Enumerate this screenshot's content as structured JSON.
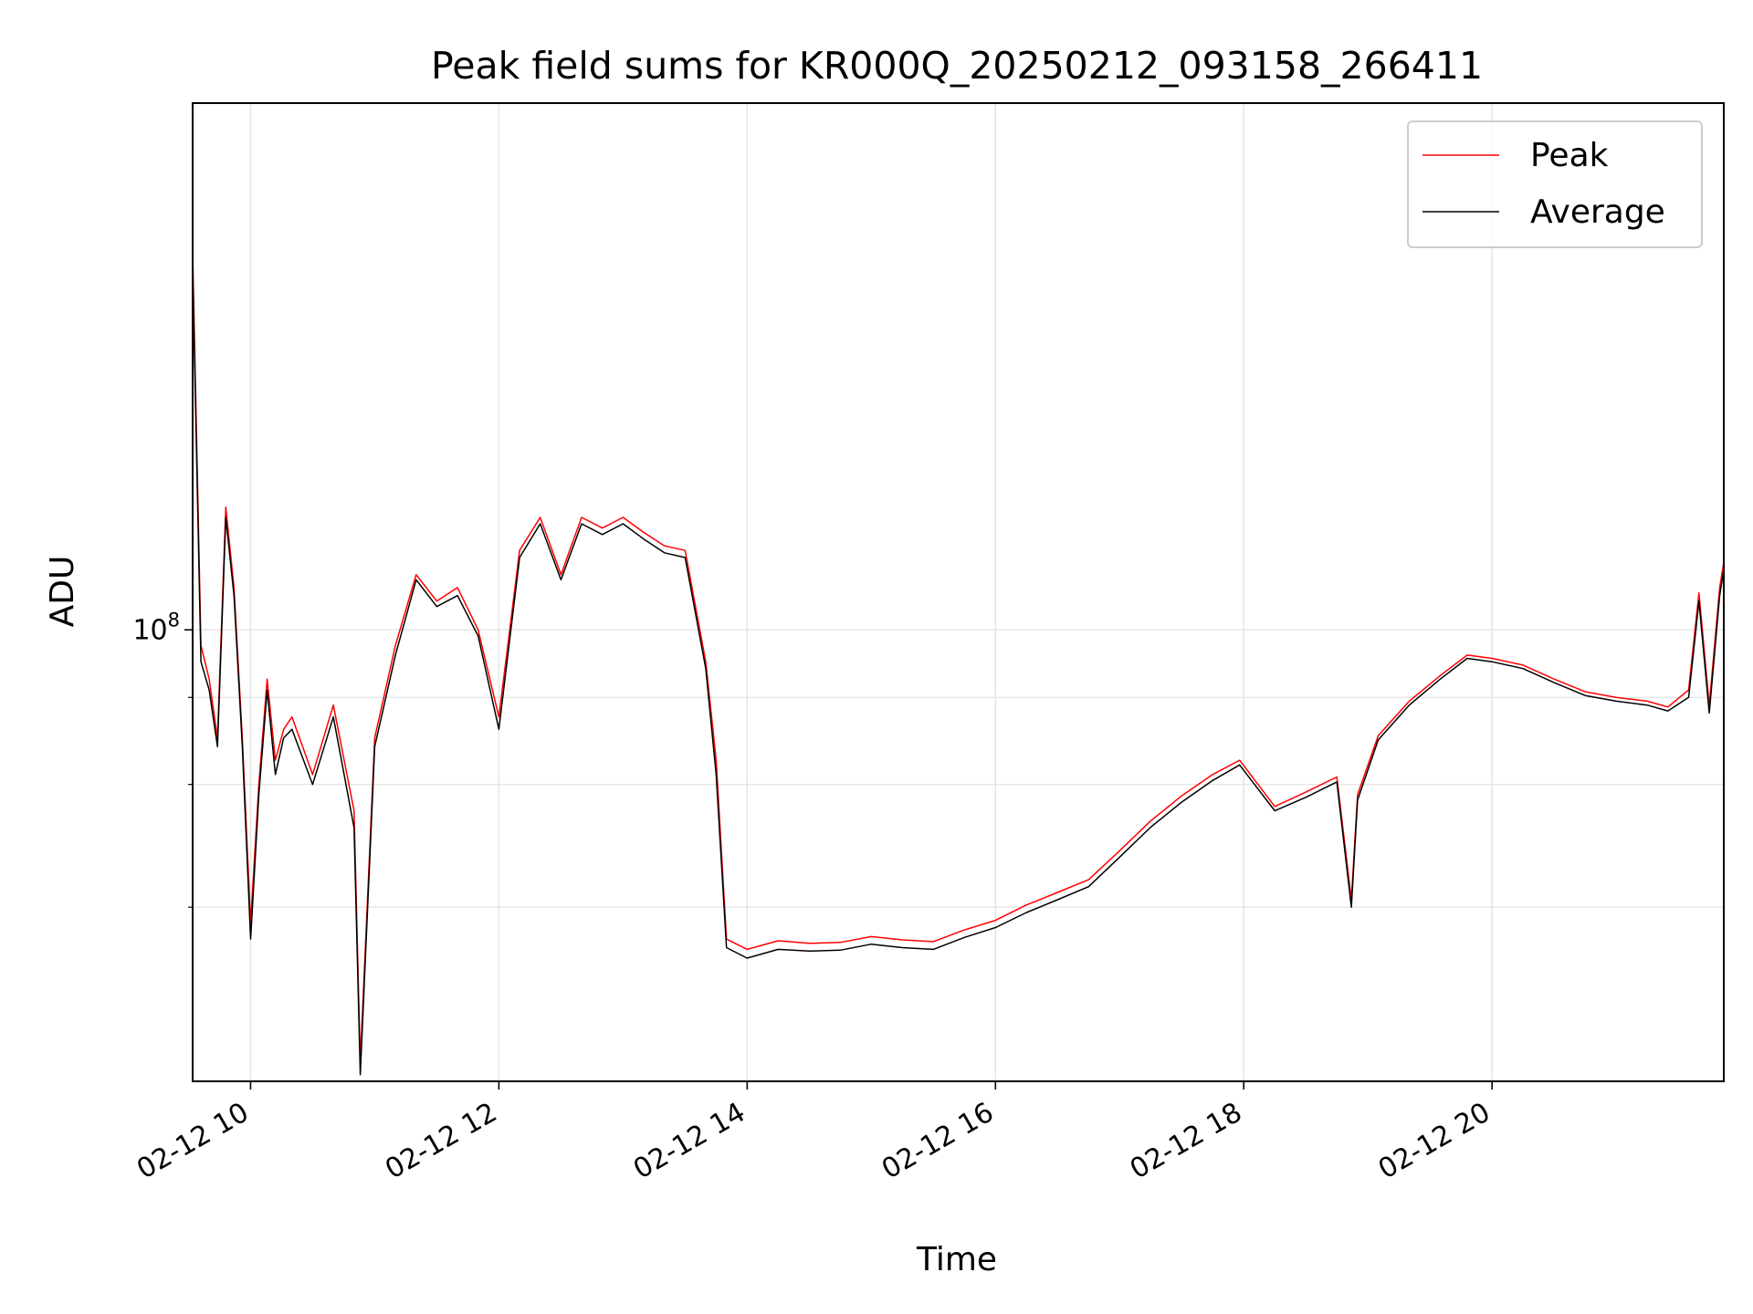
{
  "chart_data": {
    "type": "line",
    "title": "Peak field sums for KR000Q_20250212_093158_266411",
    "xlabel": "Time",
    "ylabel": "ADU",
    "yscale": "log",
    "xlim": [
      "2025-02-12 09:32",
      "2025-02-12 21:52"
    ],
    "ylim": [
      22500000,
      570000000
    ],
    "grid": true,
    "legend": "top-right",
    "x_ticks": [
      "02-12 10",
      "02-12 12",
      "02-12 14",
      "02-12 16",
      "02-12 18",
      "02-12 20"
    ],
    "y_ticks": [
      "10^8"
    ],
    "colors": {
      "Peak": "#ff0000",
      "Average": "#000000"
    },
    "x": [
      "2025-02-12 09:32",
      "2025-02-12 09:36",
      "2025-02-12 09:40",
      "2025-02-12 09:44",
      "2025-02-12 09:48",
      "2025-02-12 09:52",
      "2025-02-12 09:56",
      "2025-02-12 10:00",
      "2025-02-12 10:04",
      "2025-02-12 10:08",
      "2025-02-12 10:12",
      "2025-02-12 10:16",
      "2025-02-12 10:20",
      "2025-02-12 10:30",
      "2025-02-12 10:40",
      "2025-02-12 10:50",
      "2025-02-12 10:53",
      "2025-02-12 11:00",
      "2025-02-12 11:10",
      "2025-02-12 11:20",
      "2025-02-12 11:30",
      "2025-02-12 11:40",
      "2025-02-12 11:50",
      "2025-02-12 12:00",
      "2025-02-12 12:10",
      "2025-02-12 12:20",
      "2025-02-12 12:30",
      "2025-02-12 12:40",
      "2025-02-12 12:50",
      "2025-02-12 13:00",
      "2025-02-12 13:10",
      "2025-02-12 13:20",
      "2025-02-12 13:30",
      "2025-02-12 13:40",
      "2025-02-12 13:45",
      "2025-02-12 13:50",
      "2025-02-12 14:00",
      "2025-02-12 14:15",
      "2025-02-12 14:30",
      "2025-02-12 14:45",
      "2025-02-12 15:00",
      "2025-02-12 15:15",
      "2025-02-12 15:30",
      "2025-02-12 15:45",
      "2025-02-12 16:00",
      "2025-02-12 16:15",
      "2025-02-12 16:30",
      "2025-02-12 16:45",
      "2025-02-12 17:00",
      "2025-02-12 17:15",
      "2025-02-12 17:30",
      "2025-02-12 17:45",
      "2025-02-12 17:58",
      "2025-02-12 18:15",
      "2025-02-12 18:30",
      "2025-02-12 18:45",
      "2025-02-12 18:52",
      "2025-02-12 18:55",
      "2025-02-12 19:05",
      "2025-02-12 19:20",
      "2025-02-12 19:35",
      "2025-02-12 19:48",
      "2025-02-12 20:00",
      "2025-02-12 20:15",
      "2025-02-12 20:30",
      "2025-02-12 20:45",
      "2025-02-12 21:00",
      "2025-02-12 21:15",
      "2025-02-12 21:25",
      "2025-02-12 21:35",
      "2025-02-12 21:40",
      "2025-02-12 21:45",
      "2025-02-12 21:50",
      "2025-02-12 21:52"
    ],
    "series": [
      {
        "name": "Peak",
        "values": [
          350000000,
          95000000,
          85000000,
          70000000,
          150000000,
          115000000,
          70000000,
          38000000,
          60000000,
          85000000,
          65000000,
          72000000,
          75000000,
          62000000,
          78000000,
          55000000,
          24000000,
          70000000,
          95000000,
          120000000,
          110000000,
          115000000,
          100000000,
          75000000,
          130000000,
          145000000,
          120000000,
          145000000,
          140000000,
          145000000,
          138000000,
          132000000,
          130000000,
          90000000,
          65000000,
          36000000,
          34800000,
          35800000,
          35500000,
          35600000,
          36300000,
          35900000,
          35700000,
          37100000,
          38300000,
          40300000,
          42000000,
          43800000,
          48200000,
          53200000,
          57800000,
          62000000,
          65000000,
          55800000,
          58500000,
          61500000,
          41000000,
          58000000,
          70500000,
          79000000,
          86000000,
          92000000,
          91000000,
          89000000,
          85000000,
          81500000,
          80000000,
          79000000,
          77500000,
          82000000,
          113000000,
          78000000,
          115000000,
          125000000
        ]
      },
      {
        "name": "Average",
        "values": [
          330000000,
          90000000,
          82000000,
          68000000,
          145000000,
          112000000,
          68000000,
          36000000,
          58000000,
          82000000,
          62000000,
          70000000,
          72000000,
          60000000,
          75000000,
          52000000,
          23000000,
          68000000,
          92000000,
          118000000,
          108000000,
          112000000,
          98000000,
          72000000,
          127000000,
          142000000,
          118000000,
          142000000,
          137000000,
          142000000,
          135000000,
          129000000,
          127000000,
          88000000,
          62000000,
          35000000,
          33800000,
          34800000,
          34600000,
          34700000,
          35400000,
          35000000,
          34800000,
          36200000,
          37400000,
          39300000,
          41000000,
          42800000,
          47200000,
          52100000,
          56600000,
          60800000,
          64000000,
          55000000,
          57500000,
          60500000,
          40000000,
          57000000,
          69500000,
          78000000,
          85000000,
          91000000,
          90000000,
          88000000,
          84000000,
          80500000,
          79000000,
          78000000,
          76500000,
          80000000,
          110000000,
          76000000,
          112000000,
          122000000
        ]
      }
    ]
  }
}
